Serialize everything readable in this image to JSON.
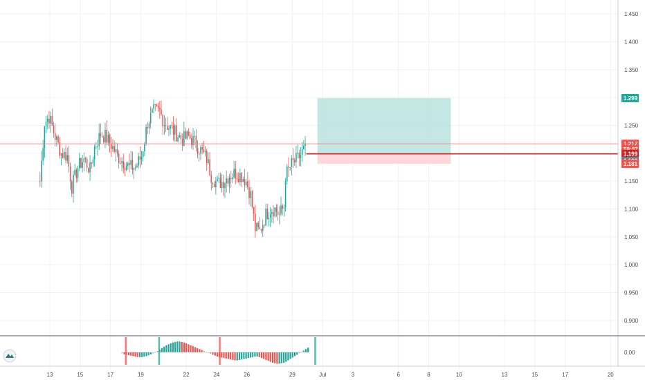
{
  "colors": {
    "up": "#26a69a",
    "down": "#ef5350",
    "grid": "#eef0f3",
    "target_zone": "#b2dfdb",
    "stop_zone": "#ffcdd2",
    "entry_line": "#c62828",
    "current_price_line": "#f48a8a",
    "osc_green": "#26a69a",
    "osc_red": "#ef5350",
    "osc_gray": "#b2b5be",
    "logo": "#2e7d6b"
  },
  "icons": {
    "logo": "tradingview-style-logo-icon"
  },
  "chart_data": {
    "type": "candlestick",
    "title": "",
    "xlabel": "",
    "ylabel": "",
    "price_axis": {
      "ylim": [
        0.875,
        1.475
      ],
      "ticks": [
        "0.900",
        "0.950",
        "1.000",
        "1.050",
        "1.100",
        "1.150",
        "1.200",
        "1.250",
        "1.300",
        "1.350",
        "1.400",
        "1.450"
      ]
    },
    "time_axis": {
      "ticks": [
        {
          "bar": 0,
          "label": "13"
        },
        {
          "bar": 20,
          "label": "15"
        },
        {
          "bar": 40,
          "label": "17"
        },
        {
          "bar": 60,
          "label": "19"
        },
        {
          "bar": 90,
          "label": "22"
        },
        {
          "bar": 110,
          "label": "24"
        },
        {
          "bar": 130,
          "label": "26"
        },
        {
          "bar": 160,
          "label": "29"
        },
        {
          "bar": 180,
          "label": "Jul"
        },
        {
          "bar": 200,
          "label": "3"
        },
        {
          "bar": 230,
          "label": "6"
        },
        {
          "bar": 250,
          "label": "8"
        },
        {
          "bar": 270,
          "label": "10"
        },
        {
          "bar": 300,
          "label": "13"
        },
        {
          "bar": 320,
          "label": "15"
        },
        {
          "bar": 340,
          "label": "17"
        },
        {
          "bar": 370,
          "label": "20"
        }
      ]
    },
    "price_tags": [
      {
        "label": "1.299",
        "value": 1.299,
        "color": "#26a69a"
      },
      {
        "label": "1.217",
        "value": 1.217,
        "color": "#ef5350"
      },
      {
        "label": "59:07",
        "value": 1.207,
        "color": "#ef5350"
      },
      {
        "label": "1.199",
        "value": 1.199,
        "color": "#c62828"
      },
      {
        "label": "1.199",
        "value": 1.1865,
        "color": "#787b86"
      },
      {
        "label": "1.181",
        "value": 1.181,
        "color": "#ef5350"
      }
    ],
    "position": {
      "entry": 1.199,
      "target": 1.299,
      "stop": 1.181,
      "start_bar": 177,
      "end_bar": 265,
      "entry_line_end_bar": 300
    },
    "current_price": 1.217,
    "anchor": {
      "open": 1.15,
      "seed": 7
    },
    "path": [
      [
        0,
        1.15
      ],
      [
        3,
        1.255
      ],
      [
        6,
        1.265
      ],
      [
        10,
        1.23
      ],
      [
        14,
        1.2
      ],
      [
        18,
        1.195
      ],
      [
        21,
        1.14
      ],
      [
        25,
        1.175
      ],
      [
        29,
        1.19
      ],
      [
        33,
        1.17
      ],
      [
        36,
        1.21
      ],
      [
        40,
        1.235
      ],
      [
        43,
        1.23
      ],
      [
        47,
        1.215
      ],
      [
        51,
        1.195
      ],
      [
        55,
        1.185
      ],
      [
        59,
        1.175
      ],
      [
        63,
        1.175
      ],
      [
        67,
        1.195
      ],
      [
        71,
        1.255
      ],
      [
        75,
        1.275
      ],
      [
        79,
        1.275
      ],
      [
        82,
        1.255
      ],
      [
        86,
        1.245
      ],
      [
        90,
        1.235
      ],
      [
        94,
        1.225
      ],
      [
        98,
        1.23
      ],
      [
        102,
        1.22
      ],
      [
        106,
        1.205
      ],
      [
        110,
        1.19
      ],
      [
        113,
        1.16
      ],
      [
        117,
        1.145
      ],
      [
        121,
        1.15
      ],
      [
        125,
        1.16
      ],
      [
        129,
        1.165
      ],
      [
        133,
        1.16
      ],
      [
        136,
        1.15
      ],
      [
        139,
        1.125
      ],
      [
        142,
        1.065
      ],
      [
        145,
        1.06
      ],
      [
        149,
        1.09
      ],
      [
        152,
        1.1
      ],
      [
        155,
        1.1
      ],
      [
        158,
        1.09
      ],
      [
        161,
        1.105
      ],
      [
        162,
        1.16
      ],
      [
        166,
        1.18
      ],
      [
        170,
        1.19
      ],
      [
        174,
        1.205
      ],
      [
        175,
        1.217
      ]
    ],
    "oscillator": {
      "type": "histogram",
      "ylim": [
        -0.04,
        0.03
      ],
      "tick": "0.00",
      "markers": [
        {
          "bar": 50,
          "color": "#ef5350"
        },
        {
          "bar": 72,
          "color": "#26a69a"
        },
        {
          "bar": 112,
          "color": "#ef5350"
        },
        {
          "bar": 175,
          "color": "#26a69a"
        }
      ],
      "values": [
        -0.002,
        -0.004,
        -0.005,
        -0.006,
        -0.007,
        -0.008,
        -0.009,
        -0.01,
        -0.01,
        -0.01,
        -0.009,
        -0.008,
        -0.006,
        -0.004,
        -0.002,
        0.001,
        0.003,
        0.006,
        0.009,
        0.012,
        0.015,
        0.017,
        0.019,
        0.021,
        0.022,
        0.023,
        0.023,
        0.022,
        0.021,
        0.019,
        0.017,
        0.015,
        0.013,
        0.011,
        0.009,
        0.007,
        0.005,
        0.003,
        0.001,
        -0.001,
        -0.003,
        -0.005,
        -0.007,
        -0.009,
        -0.01,
        -0.011,
        -0.012,
        -0.013,
        -0.014,
        -0.015,
        -0.016,
        -0.017,
        -0.017,
        -0.016,
        -0.015,
        -0.014,
        -0.013,
        -0.012,
        -0.011,
        -0.01,
        -0.009,
        -0.009,
        -0.01,
        -0.012,
        -0.014,
        -0.016,
        -0.018,
        -0.02,
        -0.022,
        -0.023,
        -0.024,
        -0.024,
        -0.023,
        -0.022,
        -0.02,
        -0.017,
        -0.014,
        -0.011,
        -0.008,
        -0.005,
        -0.002,
        0.001,
        0.004,
        0.007,
        0.01
      ]
    }
  }
}
